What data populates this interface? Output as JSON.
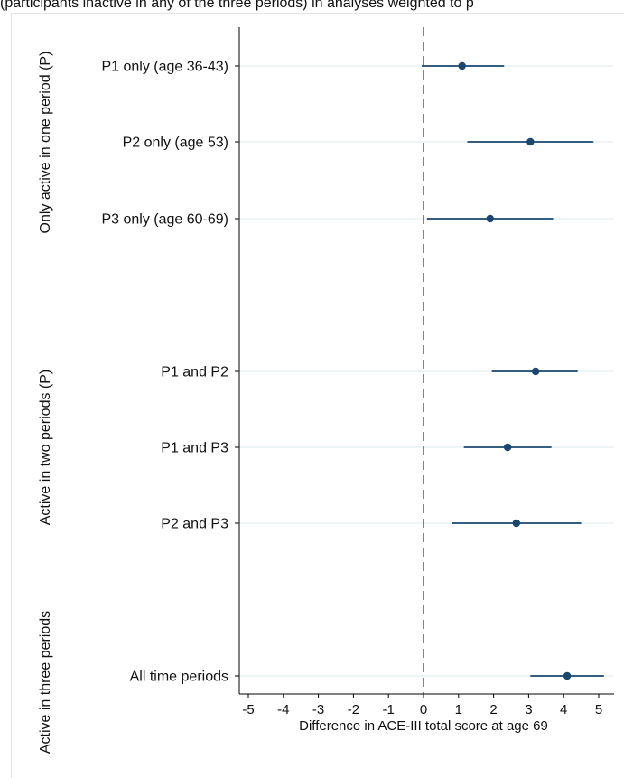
{
  "header_cutoff_text": "(participants inactive in any of the three periods) in analyses weighted to p",
  "chart_data": {
    "type": "scatter",
    "style": "coefficient-plot",
    "xlabel": "Difference in ACE-III total score at age 69",
    "xticks": [
      -5,
      -4,
      -3,
      -2,
      -1,
      0,
      1,
      2,
      3,
      4,
      5
    ],
    "xlim": [
      -5.3,
      5.3
    ],
    "reference_line_x": 0,
    "point_color": "#1a476f",
    "grid_color": "#eaf2f3",
    "groups": [
      {
        "label": "Only active in one period (P)",
        "rows": [
          0,
          1,
          2
        ]
      },
      {
        "label": "Active in two periods (P)",
        "rows": [
          3,
          4,
          5
        ]
      },
      {
        "label": "Active in three periods",
        "rows": [
          6
        ]
      }
    ],
    "rows": [
      {
        "label": "P1 only (age 36-43)",
        "estimate": 1.1,
        "ci_low": -0.05,
        "ci_high": 2.3
      },
      {
        "label": "P2 only (age 53)",
        "estimate": 3.05,
        "ci_low": 1.25,
        "ci_high": 4.85
      },
      {
        "label": "P3 only (age 60-69)",
        "estimate": 1.9,
        "ci_low": 0.1,
        "ci_high": 3.7
      },
      {
        "label": "P1 and P2",
        "estimate": 3.2,
        "ci_low": 1.95,
        "ci_high": 4.4
      },
      {
        "label": "P1 and P3",
        "estimate": 2.4,
        "ci_low": 1.15,
        "ci_high": 3.65
      },
      {
        "label": "P2 and P3",
        "estimate": 2.65,
        "ci_low": 0.8,
        "ci_high": 4.5
      },
      {
        "label": "All time periods",
        "estimate": 4.1,
        "ci_low": 3.05,
        "ci_high": 5.15
      }
    ]
  }
}
